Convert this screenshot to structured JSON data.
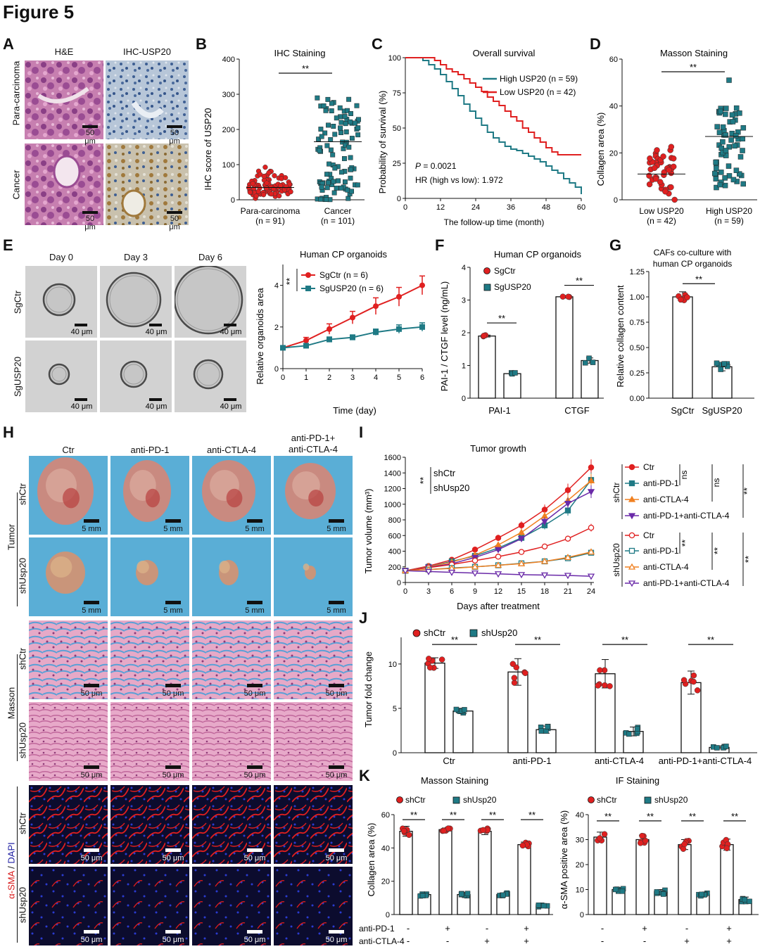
{
  "figure_title": "Figure 5",
  "colors": {
    "red": "#e02020",
    "teal": "#1f7a85",
    "he_pink": "#c8729e",
    "masson_blue": "#58aad8",
    "if_red": "#d81b1b",
    "if_blue": "#1a1a6e"
  },
  "A": {
    "label": "A",
    "col_he": "H&E",
    "col_ihc": "IHC-USP20",
    "row_para": "Para-carcinoma",
    "row_cancer": "Cancer",
    "scale": "50 μm"
  },
  "B": {
    "label": "B",
    "title": "IHC Staining",
    "ylabel": "IHC score of USP20",
    "sig": "**",
    "cat1": "Para-carcinoma",
    "n1": "(n = 91)",
    "cat2": "Cancer",
    "n2": "(n = 101)"
  },
  "C": {
    "label": "C",
    "title": "Overall survival",
    "ylabel": "Probability of survival (%)",
    "xlabel": "The follow-up time (month)",
    "legend_high": "High USP20 (n = 59)",
    "legend_low": "Low USP20 (n = 42)",
    "p_label": "P",
    "p_value": " = 0.0021",
    "hr": "HR (high vs low): 1.972"
  },
  "D": {
    "label": "D",
    "title": "Masson Staining",
    "ylabel": "Collagen area (%)",
    "sig": "**",
    "cat1": "Low USP20",
    "n1": "(n = 42)",
    "cat2": "High USP20",
    "n2": "(n = 59)"
  },
  "E": {
    "label": "E",
    "day0": "Day 0",
    "day3": "Day 3",
    "day6": "Day 6",
    "row1": "SgCtr",
    "row2": "SgUSP20",
    "scale": "40 μm",
    "chart_title": "Human CP organoids",
    "ylabel": "Relative organoids area",
    "xlabel": "Time (day)",
    "leg1": "SgCtr (n = 6)",
    "leg2": "SgUSP20 (n = 6)",
    "sig": "**"
  },
  "F": {
    "label": "F",
    "title": "Human CP organoids",
    "ylabel": "PAI-1 / CTGF level (ng/mL)",
    "leg1": "SgCtr",
    "leg2": "SgUSP20",
    "cat1": "PAI-1",
    "cat2": "CTGF",
    "sig": "**"
  },
  "G": {
    "label": "G",
    "title1": "CAFs co-culture with",
    "title2": "human CP organoids",
    "ylabel": "Relative collagen content",
    "cat1": "SgCtr",
    "cat2": "SgUSP20",
    "sig": "**"
  },
  "H": {
    "label": "H",
    "col1": "Ctr",
    "col2": "anti-PD-1",
    "col3": "anti-CTLA-4",
    "col4a": "anti-PD-1+",
    "col4b": "anti-CTLA-4",
    "group_tumor": "Tumor",
    "group_masson": "Masson",
    "group_if_red": "α-SMA",
    "group_if_sep": " / ",
    "group_if_blue": "DAPI",
    "row_shctr": "shCtr",
    "row_shusp": "shUsp20",
    "scale_mm": "5 mm",
    "scale_um": "50 μm"
  },
  "I": {
    "label": "I",
    "title": "Tumor growth",
    "ylabel": "Tumor volume (mm³)",
    "xlabel": "Days after treatment",
    "sig": "**",
    "inline1": "shCtr",
    "inline2": "shUsp20",
    "group1": "shCtr",
    "group2": "shUsp20",
    "ns": "ns",
    "legend": [
      "Ctr",
      "anti-PD-1",
      "anti-CTLA-4",
      "anti-PD-1+anti-CTLA-4"
    ]
  },
  "J": {
    "label": "J",
    "ylabel": "Tumor fold change",
    "leg1": "shCtr",
    "leg2": "shUsp20",
    "sig": "**",
    "cats": [
      "Ctr",
      "anti-PD-1",
      "anti-CTLA-4",
      "anti-PD-1+anti-CTLA-4"
    ]
  },
  "K": {
    "label": "K",
    "title1": "Masson Staining",
    "title2": "IF Staining",
    "ylabel1": "Collagen area (%)",
    "ylabel2": "α-SMA positive area (%)",
    "leg1": "shCtr",
    "leg2": "shUsp20",
    "sig": "**",
    "row1": "anti-PD-1",
    "row2": "anti-CTLA-4",
    "minus": "-",
    "plus": "+"
  },
  "chart_data": [
    {
      "id": "B",
      "type": "scatter",
      "title": "IHC Staining",
      "ylabel": "IHC score of USP20",
      "ylim": [
        0,
        400
      ],
      "yticks": [
        0,
        100,
        200,
        300,
        400
      ],
      "categories": [
        "Para-carcinoma",
        "Cancer"
      ],
      "means": [
        35,
        165
      ],
      "spread": [
        [
          0,
          110
        ],
        [
          0,
          290
        ]
      ]
    },
    {
      "id": "C",
      "type": "line",
      "title": "Overall survival",
      "xlabel": "The follow-up time (month)",
      "ylabel": "Probability of survival (%)",
      "xlim": [
        0,
        60
      ],
      "ylim": [
        0,
        100
      ],
      "xticks": [
        0,
        12,
        24,
        36,
        48,
        60
      ],
      "yticks": [
        0,
        25,
        50,
        75,
        100
      ],
      "series": [
        {
          "name": "High USP20 (n = 59)",
          "x": [
            0,
            4,
            6,
            8,
            10,
            12,
            14,
            16,
            18,
            20,
            22,
            24,
            26,
            28,
            30,
            32,
            34,
            36,
            38,
            40,
            42,
            44,
            46,
            48,
            50,
            52,
            54,
            56,
            58,
            60
          ],
          "y": [
            100,
            100,
            98,
            95,
            92,
            88,
            83,
            78,
            73,
            67,
            62,
            57,
            52,
            47,
            43,
            40,
            37,
            35,
            34,
            32,
            30,
            28,
            26,
            23,
            20,
            18,
            14,
            11,
            8,
            3
          ]
        },
        {
          "name": "Low USP20 (n = 42)",
          "x": [
            0,
            8,
            10,
            12,
            14,
            16,
            18,
            20,
            22,
            24,
            26,
            28,
            30,
            32,
            34,
            36,
            38,
            40,
            42,
            44,
            46,
            48,
            50,
            52,
            54,
            56,
            58,
            60
          ],
          "y": [
            100,
            100,
            98,
            95,
            92,
            90,
            88,
            85,
            82,
            79,
            76,
            72,
            69,
            66,
            62,
            58,
            55,
            50,
            47,
            43,
            40,
            36,
            33,
            31,
            31,
            31,
            31,
            31
          ]
        }
      ]
    },
    {
      "id": "D",
      "type": "scatter",
      "title": "Masson Staining",
      "ylabel": "Collagen area (%)",
      "ylim": [
        0,
        60
      ],
      "yticks": [
        0,
        20,
        40,
        60
      ],
      "categories": [
        "Low USP20",
        "High USP20"
      ],
      "means": [
        11,
        27
      ],
      "spread": [
        [
          0,
          36
        ],
        [
          5,
          51
        ]
      ]
    },
    {
      "id": "E",
      "type": "line",
      "title": "Human CP organoids",
      "xlabel": "Time (day)",
      "ylabel": "Relative organoids area",
      "x": [
        0,
        1,
        2,
        3,
        4,
        5,
        6
      ],
      "ylim": [
        0,
        5
      ],
      "yticks": [
        0,
        2,
        4
      ],
      "series": [
        {
          "name": "SgCtr (n = 6)",
          "values": [
            1.0,
            1.35,
            1.9,
            2.45,
            3.0,
            3.45,
            4.0
          ],
          "err": [
            0.05,
            0.15,
            0.25,
            0.3,
            0.4,
            0.45,
            0.45
          ]
        },
        {
          "name": "SgUSP20 (n = 6)",
          "values": [
            1.0,
            1.1,
            1.4,
            1.5,
            1.75,
            1.9,
            2.0
          ],
          "err": [
            0.05,
            0.1,
            0.12,
            0.12,
            0.15,
            0.2,
            0.2
          ]
        }
      ]
    },
    {
      "id": "F",
      "type": "bar",
      "title": "Human CP organoids",
      "ylabel": "PAI-1 / CTGF level (ng/mL)",
      "categories": [
        "PAI-1",
        "CTGF"
      ],
      "ylim": [
        0,
        4
      ],
      "yticks": [
        0,
        1,
        2,
        3,
        4
      ],
      "series": [
        {
          "name": "SgCtr",
          "values": [
            1.9,
            3.1
          ]
        },
        {
          "name": "SgUSP20",
          "values": [
            0.75,
            1.15
          ]
        }
      ]
    },
    {
      "id": "G",
      "type": "bar",
      "title": "CAFs co-culture with human CP organoids",
      "ylabel": "Relative collagen content",
      "categories": [
        "SgCtr",
        "SgUSP20"
      ],
      "ylim": [
        0,
        1.25
      ],
      "yticks": [
        0,
        0.25,
        0.5,
        0.75,
        1.0,
        1.25
      ],
      "values": [
        1.0,
        0.31
      ]
    },
    {
      "id": "I",
      "type": "line",
      "title": "Tumor growth",
      "xlabel": "Days after treatment",
      "ylabel": "Tumor volume (mm³)",
      "x": [
        0,
        3,
        6,
        9,
        12,
        15,
        18,
        21,
        24
      ],
      "ylim": [
        0,
        1600
      ],
      "yticks": [
        0,
        200,
        400,
        600,
        800,
        1000,
        1200,
        1400,
        1600
      ],
      "series": [
        {
          "name": "shCtr Ctr",
          "values": [
            150,
            210,
            290,
            420,
            570,
            730,
            930,
            1180,
            1470
          ]
        },
        {
          "name": "shCtr anti-PD-1",
          "values": [
            150,
            200,
            270,
            340,
            440,
            570,
            730,
            920,
            1310
          ]
        },
        {
          "name": "shCtr anti-CTLA-4",
          "values": [
            150,
            200,
            260,
            350,
            480,
            640,
            850,
            1050,
            1300
          ]
        },
        {
          "name": "shCtr anti-PD-1+anti-CTLA-4",
          "values": [
            150,
            195,
            240,
            320,
            420,
            560,
            780,
            1010,
            1160
          ]
        },
        {
          "name": "shUsp20 Ctr",
          "values": [
            150,
            190,
            230,
            280,
            330,
            390,
            460,
            560,
            700
          ]
        },
        {
          "name": "shUsp20 anti-PD-1",
          "values": [
            150,
            165,
            185,
            200,
            220,
            245,
            270,
            310,
            380
          ]
        },
        {
          "name": "shUsp20 anti-CTLA-4",
          "values": [
            150,
            165,
            180,
            200,
            220,
            240,
            270,
            320,
            390
          ]
        },
        {
          "name": "shUsp20 anti-PD-1+anti-CTLA-4",
          "values": [
            150,
            140,
            130,
            120,
            110,
            100,
            95,
            90,
            80
          ]
        }
      ]
    },
    {
      "id": "J",
      "type": "bar",
      "ylabel": "Tumor fold change",
      "categories": [
        "Ctr",
        "anti-PD-1",
        "anti-CTLA-4",
        "anti-PD-1+anti-CTLA-4"
      ],
      "ylim": [
        0,
        13
      ],
      "yticks": [
        0,
        5,
        10
      ],
      "series": [
        {
          "name": "shCtr",
          "values": [
            10.1,
            9.1,
            8.9,
            7.9
          ]
        },
        {
          "name": "shUsp20",
          "values": [
            4.7,
            2.6,
            2.4,
            0.6
          ]
        }
      ]
    },
    {
      "id": "K1",
      "type": "bar",
      "title": "Masson Staining",
      "ylabel": "Collagen area (%)",
      "ylim": [
        0,
        60
      ],
      "yticks": [
        0,
        20,
        40,
        60
      ],
      "series": [
        {
          "name": "shCtr",
          "values": [
            50,
            51,
            50,
            42
          ]
        },
        {
          "name": "shUsp20",
          "values": [
            12,
            12,
            12,
            5
          ]
        }
      ]
    },
    {
      "id": "K2",
      "type": "bar",
      "title": "IF Staining",
      "ylabel": "α-SMA positive area (%)",
      "ylim": [
        0,
        40
      ],
      "yticks": [
        0,
        10,
        20,
        30,
        40
      ],
      "series": [
        {
          "name": "shCtr",
          "values": [
            31,
            30,
            28,
            28
          ]
        },
        {
          "name": "shUsp20",
          "values": [
            10,
            9,
            8,
            6
          ]
        }
      ]
    }
  ]
}
